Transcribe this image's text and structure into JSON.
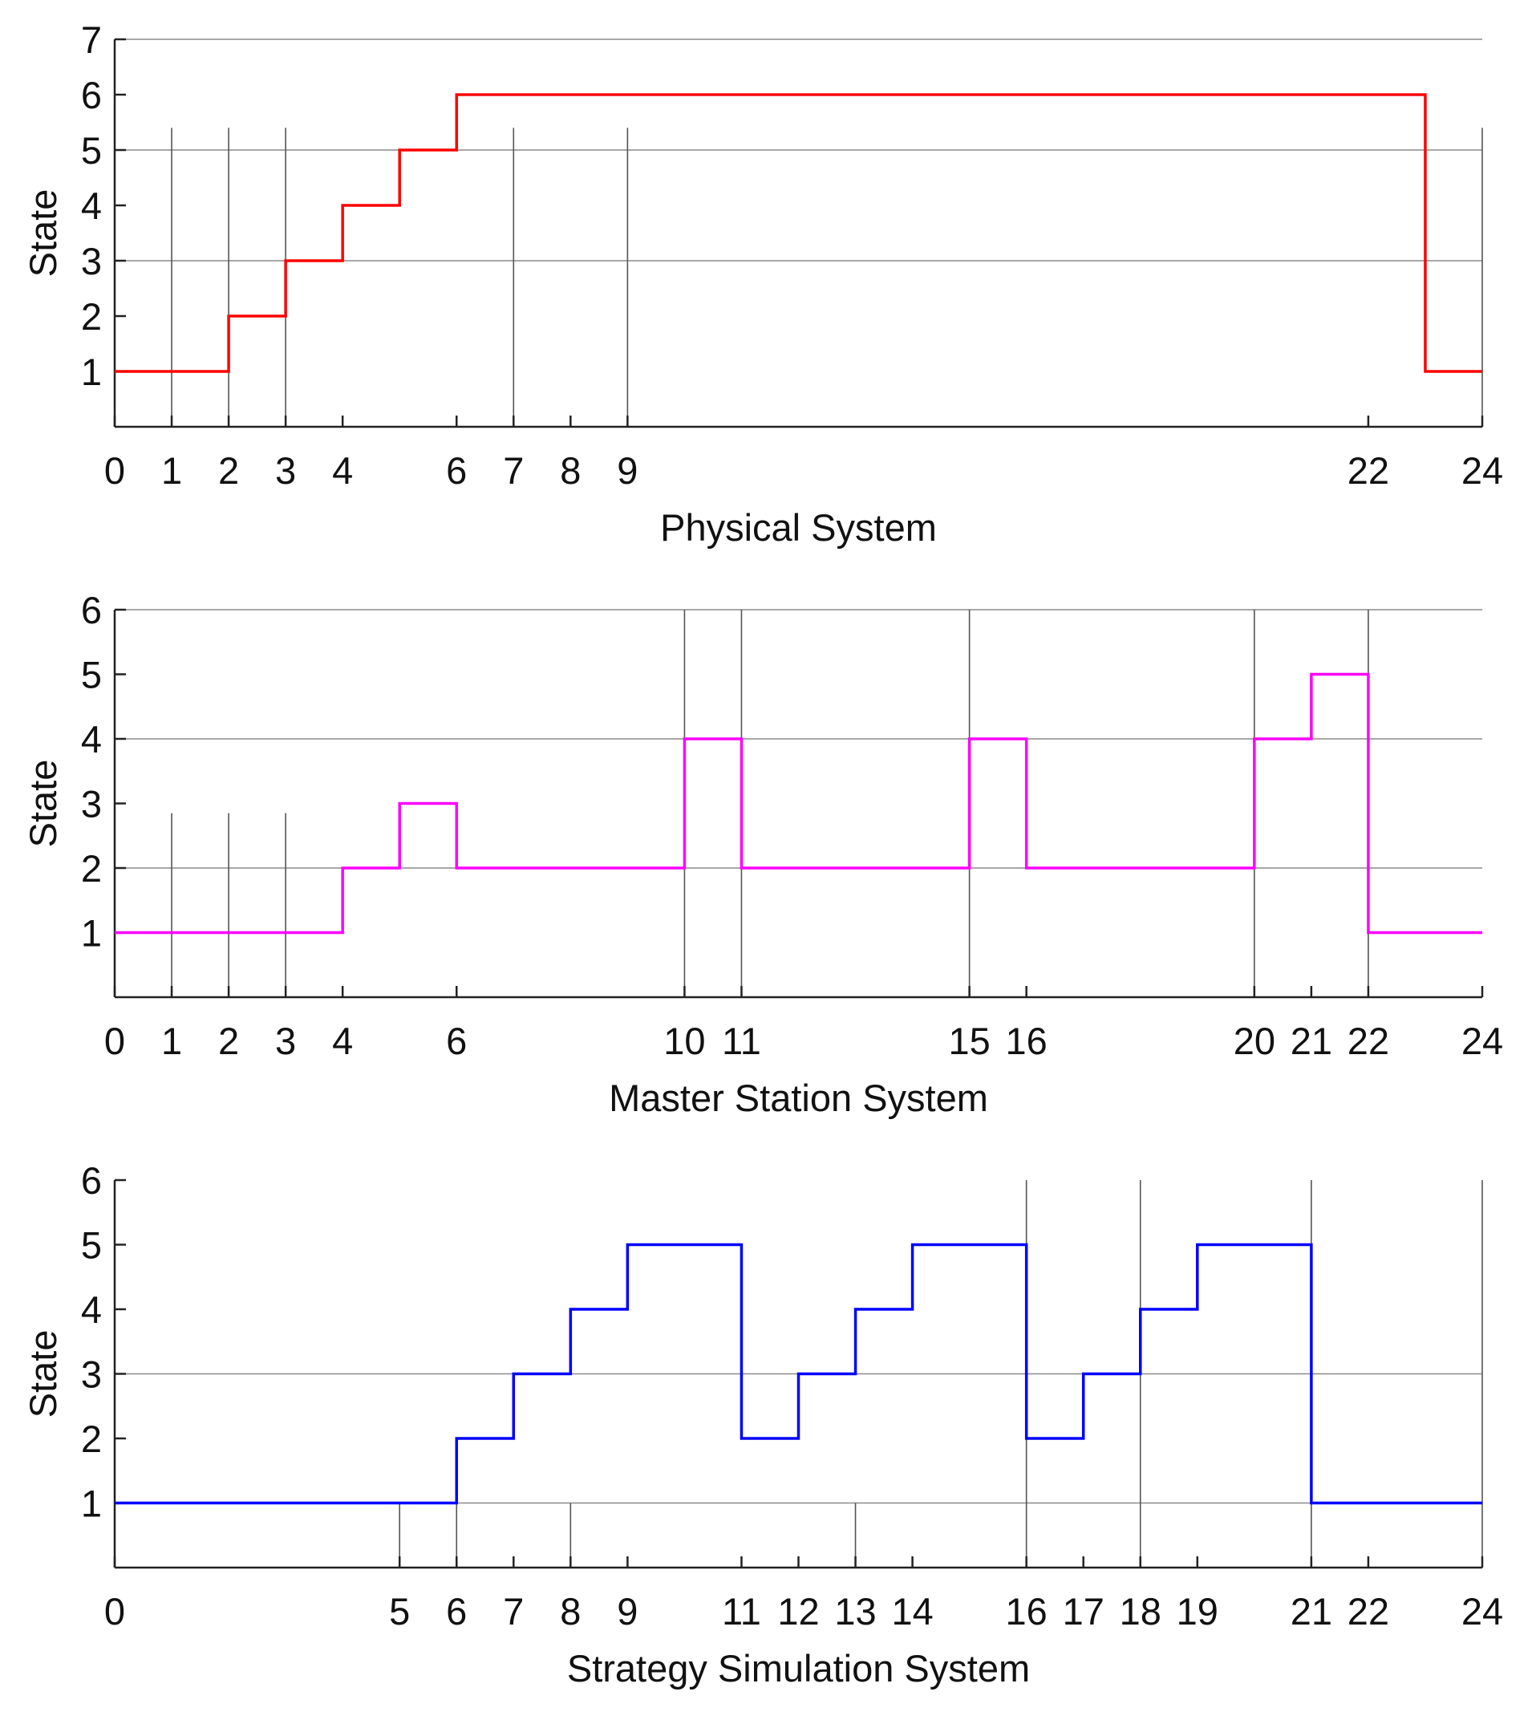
{
  "chart_data": [
    {
      "type": "line",
      "step": true,
      "xlabel": "Physical System",
      "ylabel": "State",
      "xlim": [
        0,
        24
      ],
      "ylim": [
        0,
        7
      ],
      "x_ticks": [
        0,
        1,
        2,
        3,
        4,
        6,
        7,
        8,
        9,
        22,
        24
      ],
      "y_ticks": [
        1,
        2,
        3,
        4,
        5,
        6,
        7
      ],
      "y_grid": [
        3,
        5,
        7
      ],
      "event_lines": [
        1,
        2,
        3,
        7,
        9,
        24
      ],
      "event_line_top": 5.4,
      "color": "#ff0000",
      "series": [
        {
          "x": [
            0,
            2,
            3,
            4,
            5,
            6,
            23,
            24
          ],
          "y": [
            1,
            2,
            3,
            4,
            5,
            6,
            1,
            1
          ]
        }
      ]
    },
    {
      "type": "line",
      "step": true,
      "xlabel": "Master Station System",
      "ylabel": "State",
      "xlim": [
        0,
        24
      ],
      "ylim": [
        0,
        6
      ],
      "x_ticks": [
        0,
        1,
        2,
        3,
        4,
        6,
        10,
        11,
        15,
        16,
        20,
        21,
        22,
        24
      ],
      "y_ticks": [
        1,
        2,
        3,
        4,
        5,
        6
      ],
      "y_grid": [
        2,
        4,
        6
      ],
      "event_lines": [
        1,
        2,
        3
      ],
      "event_line_top": 2.85,
      "event_lines_full": [
        10,
        11,
        15,
        20,
        22
      ],
      "color": "#ff00ff",
      "series": [
        {
          "x": [
            0,
            4,
            5,
            6,
            10,
            11,
            15,
            16,
            20,
            21,
            22,
            24
          ],
          "y": [
            1,
            2,
            3,
            2,
            4,
            2,
            4,
            2,
            4,
            5,
            1,
            1
          ]
        }
      ]
    },
    {
      "type": "line",
      "step": true,
      "xlabel": "Strategy Simulation System",
      "ylabel": "State",
      "xlim": [
        0,
        24
      ],
      "ylim": [
        0,
        6
      ],
      "x_ticks": [
        0,
        5,
        6,
        7,
        8,
        9,
        11,
        12,
        13,
        14,
        16,
        17,
        18,
        19,
        21,
        22,
        24
      ],
      "y_ticks": [
        1,
        2,
        3,
        4,
        5,
        6
      ],
      "y_grid": [
        1,
        3
      ],
      "event_lines": [
        5,
        6,
        8,
        13
      ],
      "event_line_top": 1,
      "event_lines_full": [
        16,
        18,
        21,
        24
      ],
      "color": "#0000ff",
      "series": [
        {
          "x": [
            0,
            6,
            7,
            8,
            9,
            11,
            12,
            13,
            14,
            16,
            17,
            18,
            19,
            21,
            24
          ],
          "y": [
            1,
            2,
            3,
            4,
            5,
            2,
            3,
            4,
            5,
            2,
            3,
            4,
            5,
            1,
            1
          ]
        }
      ]
    }
  ]
}
